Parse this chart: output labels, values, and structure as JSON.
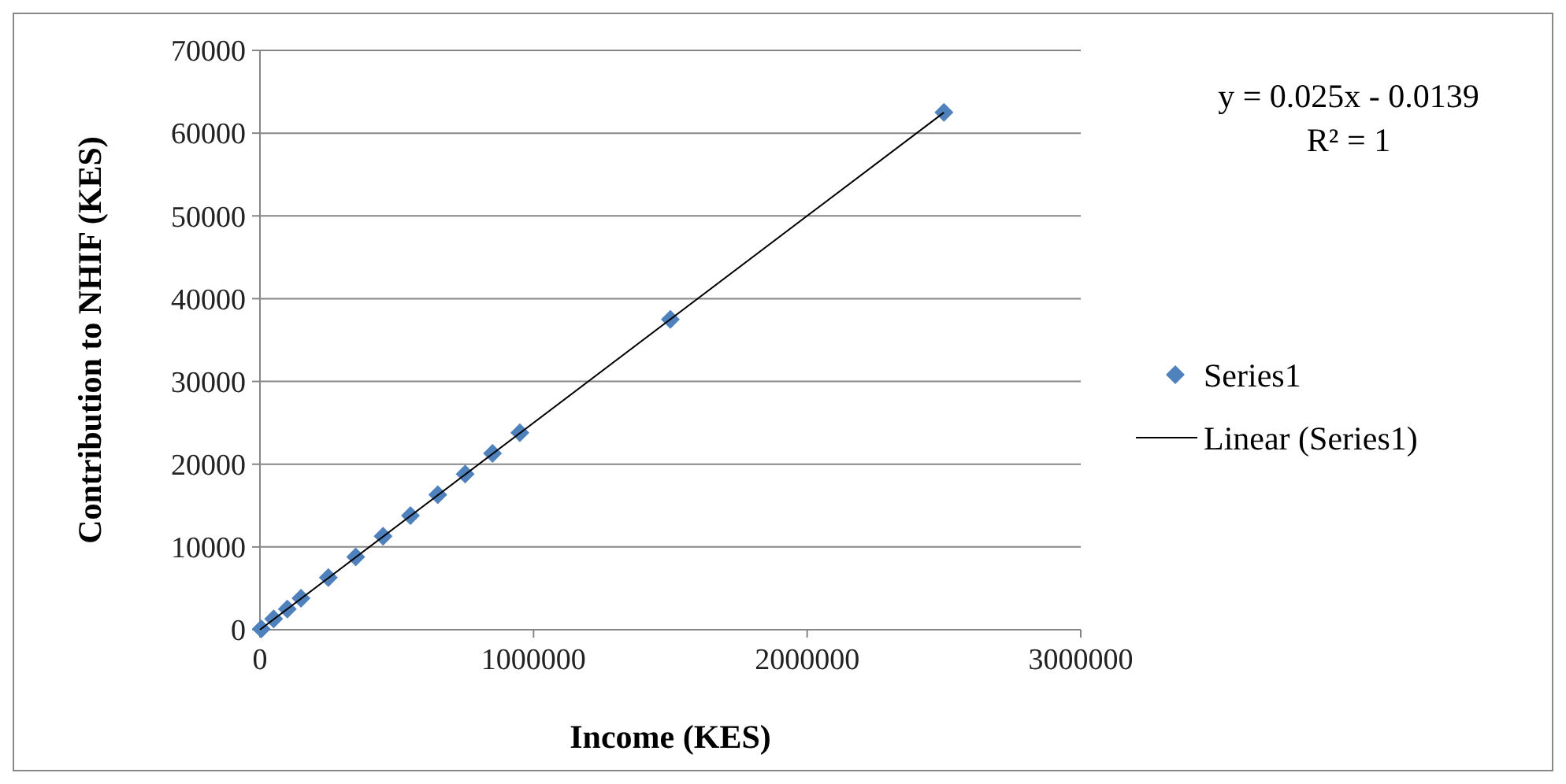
{
  "chart_data": {
    "type": "scatter",
    "xlabel": "Income (KES)",
    "ylabel": "Contribution to NHIF (KES)",
    "xlim": [
      0,
      3000000
    ],
    "xticks": [
      0,
      1000000,
      2000000,
      3000000
    ],
    "ylim": [
      0,
      70000
    ],
    "yticks": [
      0,
      10000,
      20000,
      30000,
      40000,
      50000,
      60000,
      70000
    ],
    "grid": "y",
    "legend": "right",
    "marker": "diamond",
    "annotations": [
      "y = 0.025x - 0.0139",
      "R² = 1"
    ],
    "series": [
      {
        "name": "Series1",
        "color": "#4f81bd",
        "x": [
          5000,
          50000,
          100000,
          150000,
          250000,
          350000,
          450000,
          550000,
          650000,
          750000,
          850000,
          950000,
          1500000,
          2500000
        ],
        "values": [
          100,
          1300,
          2500,
          3800,
          6300,
          8800,
          11300,
          13800,
          16300,
          18800,
          21300,
          23800,
          37500,
          62500
        ]
      },
      {
        "name": "Linear (Series1)",
        "color": "#000000",
        "type": "line",
        "marker": "none",
        "line_style": "solid",
        "x": [
          0,
          2500000
        ],
        "values": [
          0,
          62500
        ]
      }
    ]
  }
}
